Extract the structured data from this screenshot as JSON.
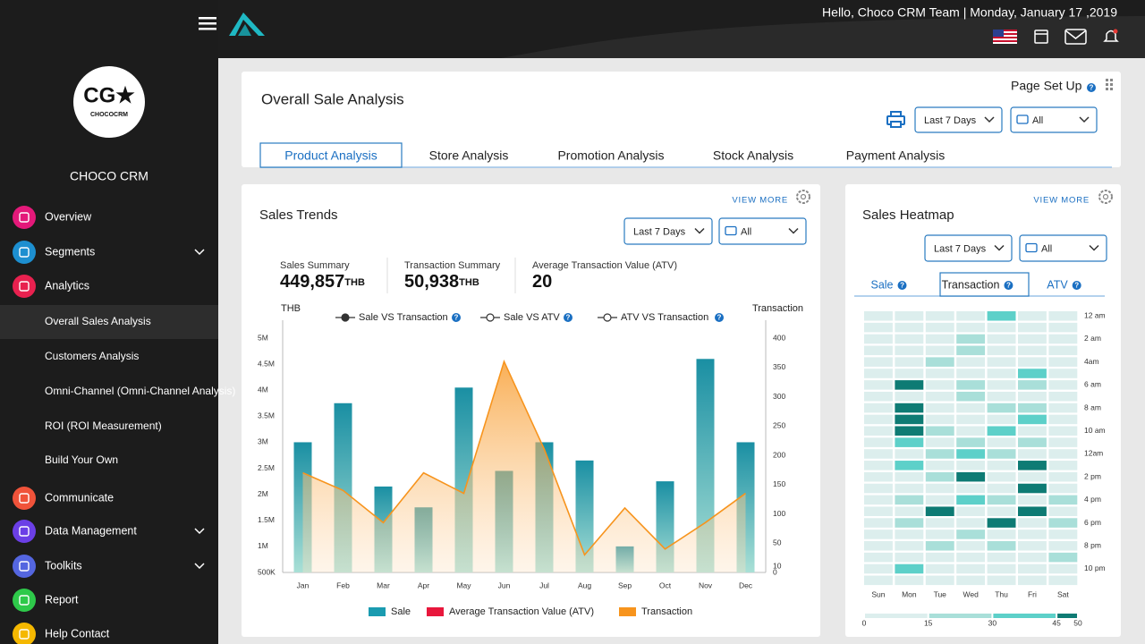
{
  "header": {
    "greeting": "Hello, Choco CRM Team | Monday, January 17 ,2019"
  },
  "sidebar": {
    "logo_mark": "CG★",
    "logo_text": "CHOCOCRM",
    "brand": "CHOCO CRM",
    "menu": [
      {
        "label": "Overview",
        "color": "#e4197a"
      },
      {
        "label": "Segments",
        "color": "#1d8fd0",
        "expandable": true
      },
      {
        "label": "Analytics",
        "color": "#e8214f"
      },
      {
        "label": "Overall Sales Analysis",
        "level": 1,
        "active": true
      },
      {
        "label": "Customers Analysis",
        "level": 1
      },
      {
        "label": "Omni-Channel (Omni-Channel Analysis)",
        "level": 1
      },
      {
        "label": "ROI (ROI Measurement)",
        "level": 1
      },
      {
        "label": "Build Your Own",
        "level": 1
      },
      {
        "label": "Communicate",
        "color": "#f0533a"
      },
      {
        "label": "Data Management",
        "color": "#6b3fe6",
        "expandable": true
      },
      {
        "label": "Toolkits",
        "color": "#5466e0",
        "expandable": true
      },
      {
        "label": "Report",
        "color": "#2ec94a"
      },
      {
        "label": "Help Contact",
        "color": "#f5b800"
      }
    ]
  },
  "page": {
    "title": "Overall Sale Analysis",
    "page_setup": "Page Set Up",
    "filters": [
      "Last 7 Days",
      "All"
    ],
    "tabs": [
      "Product Analysis",
      "Store Analysis",
      "Promotion Analysis",
      "Stock Analysis",
      "Payment Analysis"
    ],
    "active_tab": 0
  },
  "sales_trends": {
    "view_more": "VIEW MORE",
    "filters": [
      "Last 7 Days",
      "All"
    ],
    "summary": [
      {
        "label": "Sales Summary",
        "value": "449,857",
        "unit": "THB"
      },
      {
        "label": "Transaction Summary",
        "value": "50,938",
        "unit": "THB"
      },
      {
        "label": "Average Transaction Value (ATV)",
        "value": "20"
      }
    ],
    "toggles": [
      "Sale VS Transaction",
      "Sale VS ATV",
      "ATV VS Transaction"
    ]
  },
  "sales_heatmap": {
    "view_more": "VIEW MORE",
    "filters": [
      "Last 7 Days",
      "All"
    ],
    "tabs": [
      "Sale",
      "Transaction",
      "ATV"
    ],
    "active_tab": 1
  },
  "chart_data": [
    {
      "type": "bar_area",
      "title": "Sales Trends",
      "ylabel": "THB",
      "y2label": "Transaction",
      "categories": [
        "Jan",
        "Feb",
        "Mar",
        "Apr",
        "May",
        "Jun",
        "Jul",
        "Aug",
        "Sep",
        "Oct",
        "Nov",
        "Dec"
      ],
      "series": [
        {
          "name": "Sale",
          "type": "bar",
          "color": "#1a9bb0",
          "values": [
            3000000,
            3750000,
            2150000,
            1750000,
            4050000,
            2450000,
            3000000,
            2650000,
            1000000,
            2250000,
            4600000,
            3000000
          ]
        },
        {
          "name": "Average Transaction Value (ATV)",
          "color": "#e8173c",
          "values": [
            null,
            null,
            null,
            null,
            null,
            null,
            null,
            null,
            null,
            null,
            null,
            null
          ]
        },
        {
          "name": "Transaction",
          "type": "area",
          "axis": "y2",
          "color": "#f7941d",
          "values": [
            170,
            140,
            85,
            170,
            135,
            360,
            210,
            30,
            110,
            40,
            85,
            135
          ]
        }
      ],
      "ylim": [
        500000,
        5000000
      ],
      "yticks": [
        {
          "value": 500000,
          "label": "500K"
        },
        {
          "value": 1000000,
          "label": "1M"
        },
        {
          "value": 1500000,
          "label": "1.5M"
        },
        {
          "value": 2000000,
          "label": "2M"
        },
        {
          "value": 2500000,
          "label": "2.5M"
        },
        {
          "value": 3000000,
          "label": "3M"
        },
        {
          "value": 3500000,
          "label": "3.5M"
        },
        {
          "value": 4000000,
          "label": "4M"
        },
        {
          "value": 4500000,
          "label": "4.5M"
        },
        {
          "value": 5000000,
          "label": "5M"
        }
      ],
      "y2lim": [
        0,
        400
      ],
      "y2ticks": [
        0,
        10,
        50,
        100,
        150,
        200,
        250,
        300,
        350,
        400
      ],
      "grid": false
    },
    {
      "type": "heatmap",
      "title": "Sales Heatmap",
      "x": [
        "Sun",
        "Mon",
        "Tue",
        "Wed",
        "Thu",
        "Fri",
        "Sat"
      ],
      "y": [
        "12 am",
        null,
        "2 am",
        null,
        "4am",
        null,
        "6 am",
        null,
        "8 am",
        null,
        "10 am",
        null,
        "12am",
        null,
        "2 pm",
        null,
        "4 pm",
        null,
        "6 pm",
        null,
        "8 pm",
        null,
        "10 pm",
        null
      ],
      "values": [
        [
          5,
          5,
          5,
          5,
          40,
          5,
          5
        ],
        [
          5,
          5,
          5,
          5,
          5,
          5,
          5
        ],
        [
          5,
          5,
          5,
          25,
          5,
          5,
          5
        ],
        [
          5,
          5,
          5,
          25,
          5,
          5,
          5
        ],
        [
          5,
          5,
          25,
          5,
          5,
          5,
          5
        ],
        [
          5,
          5,
          5,
          5,
          5,
          40,
          5
        ],
        [
          5,
          50,
          5,
          25,
          5,
          25,
          5
        ],
        [
          5,
          5,
          5,
          25,
          5,
          5,
          5
        ],
        [
          5,
          50,
          5,
          5,
          25,
          25,
          5
        ],
        [
          5,
          50,
          5,
          5,
          5,
          40,
          5
        ],
        [
          5,
          50,
          25,
          5,
          40,
          5,
          5
        ],
        [
          5,
          40,
          5,
          25,
          5,
          25,
          5
        ],
        [
          5,
          5,
          25,
          40,
          25,
          5,
          5
        ],
        [
          5,
          40,
          5,
          5,
          5,
          50,
          5
        ],
        [
          5,
          5,
          25,
          50,
          5,
          5,
          5
        ],
        [
          5,
          5,
          5,
          5,
          5,
          50,
          5
        ],
        [
          5,
          25,
          5,
          40,
          25,
          5,
          25
        ],
        [
          5,
          5,
          50,
          5,
          5,
          50,
          5
        ],
        [
          5,
          25,
          5,
          5,
          50,
          5,
          25
        ],
        [
          5,
          5,
          5,
          25,
          5,
          5,
          5
        ],
        [
          5,
          5,
          25,
          5,
          25,
          5,
          5
        ],
        [
          5,
          5,
          5,
          5,
          5,
          5,
          25
        ],
        [
          5,
          40,
          5,
          5,
          5,
          5,
          5
        ],
        [
          5,
          5,
          5,
          5,
          5,
          5,
          5
        ]
      ],
      "scale": {
        "ticks": [
          0,
          15,
          30,
          45,
          50
        ],
        "colors": [
          "#dceeed",
          "#a9dfd9",
          "#5dd0c9",
          "#0e7b74"
        ]
      }
    }
  ]
}
